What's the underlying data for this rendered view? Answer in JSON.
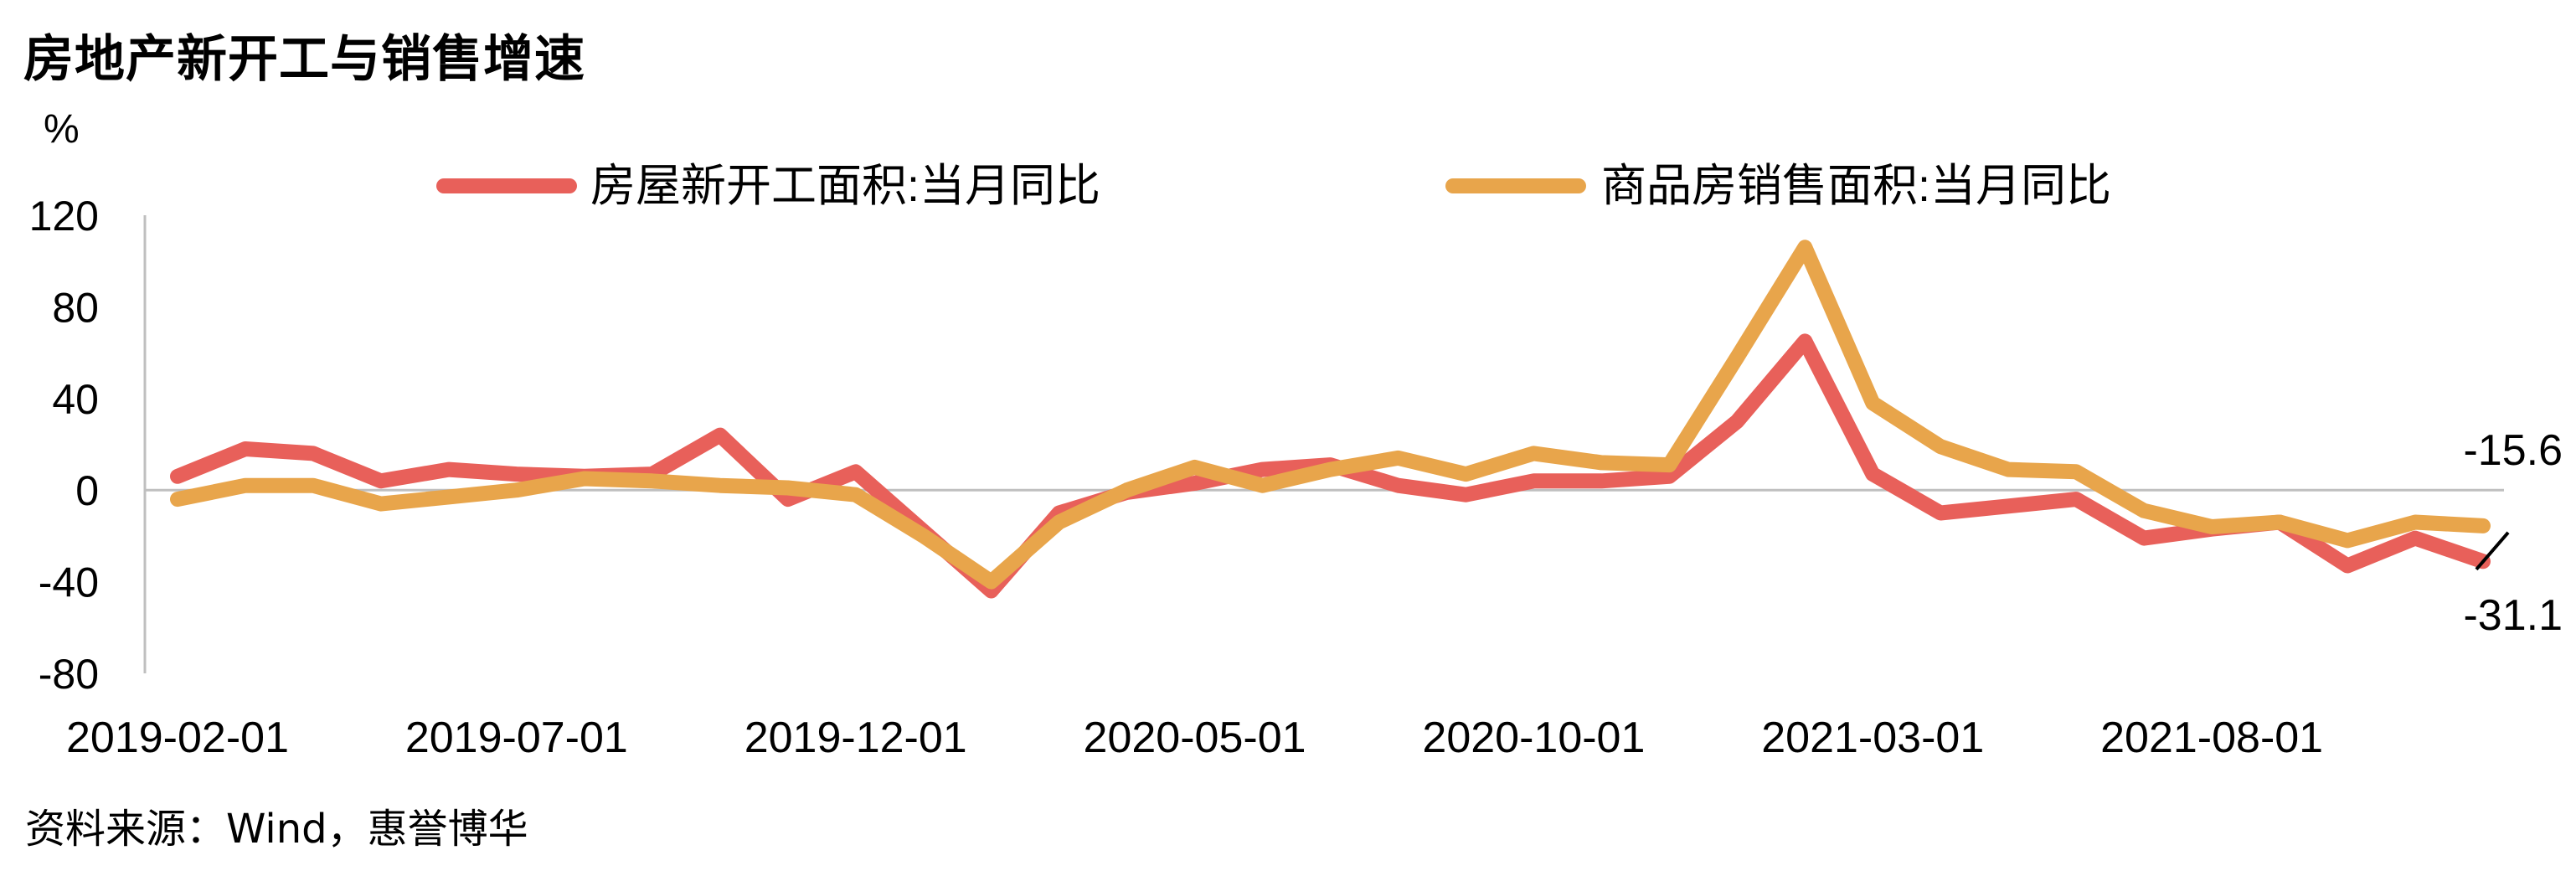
{
  "title": "房地产新开工与销售增速",
  "source": "资料来源：Wind，惠誉博华",
  "chart_data": {
    "type": "line",
    "ylabel": "%",
    "ylim": [
      -80,
      120
    ],
    "yticks": [
      120,
      80,
      40,
      0,
      -40,
      -80
    ],
    "xtick_labels": [
      "2019-02-01",
      "2019-07-01",
      "2019-12-01",
      "2020-05-01",
      "2020-10-01",
      "2021-03-01",
      "2021-08-01"
    ],
    "legend_position": "top",
    "grid": false,
    "zero_line": true,
    "series": [
      {
        "name": "房屋新开工面积:当月同比",
        "color": "#E8605A",
        "values": [
          6,
          18,
          16,
          4,
          9,
          7,
          6,
          7,
          24,
          -4,
          8,
          -18,
          -44,
          -10,
          -1,
          3,
          9,
          11,
          2,
          -2,
          4,
          4,
          6,
          30,
          65,
          7,
          -10,
          -7,
          -4,
          -21,
          -17,
          -14,
          -33,
          -21,
          -31.1
        ]
      },
      {
        "name": "商品房销售面积:当月同比",
        "color": "#E8A54B",
        "values": [
          -4,
          2,
          2,
          -6,
          -3,
          0,
          5,
          4,
          2,
          1,
          -2,
          -20,
          -40,
          -14,
          0,
          10,
          2,
          9,
          14,
          7,
          16,
          12,
          11,
          58,
          106,
          38,
          19,
          9,
          8,
          -9,
          -16,
          -14,
          -22,
          -14,
          -15.6
        ]
      }
    ],
    "annotations": [
      {
        "text": "-15.6",
        "series": 1,
        "index": 34
      },
      {
        "text": "-31.1",
        "series": 0,
        "index": 34
      }
    ]
  }
}
